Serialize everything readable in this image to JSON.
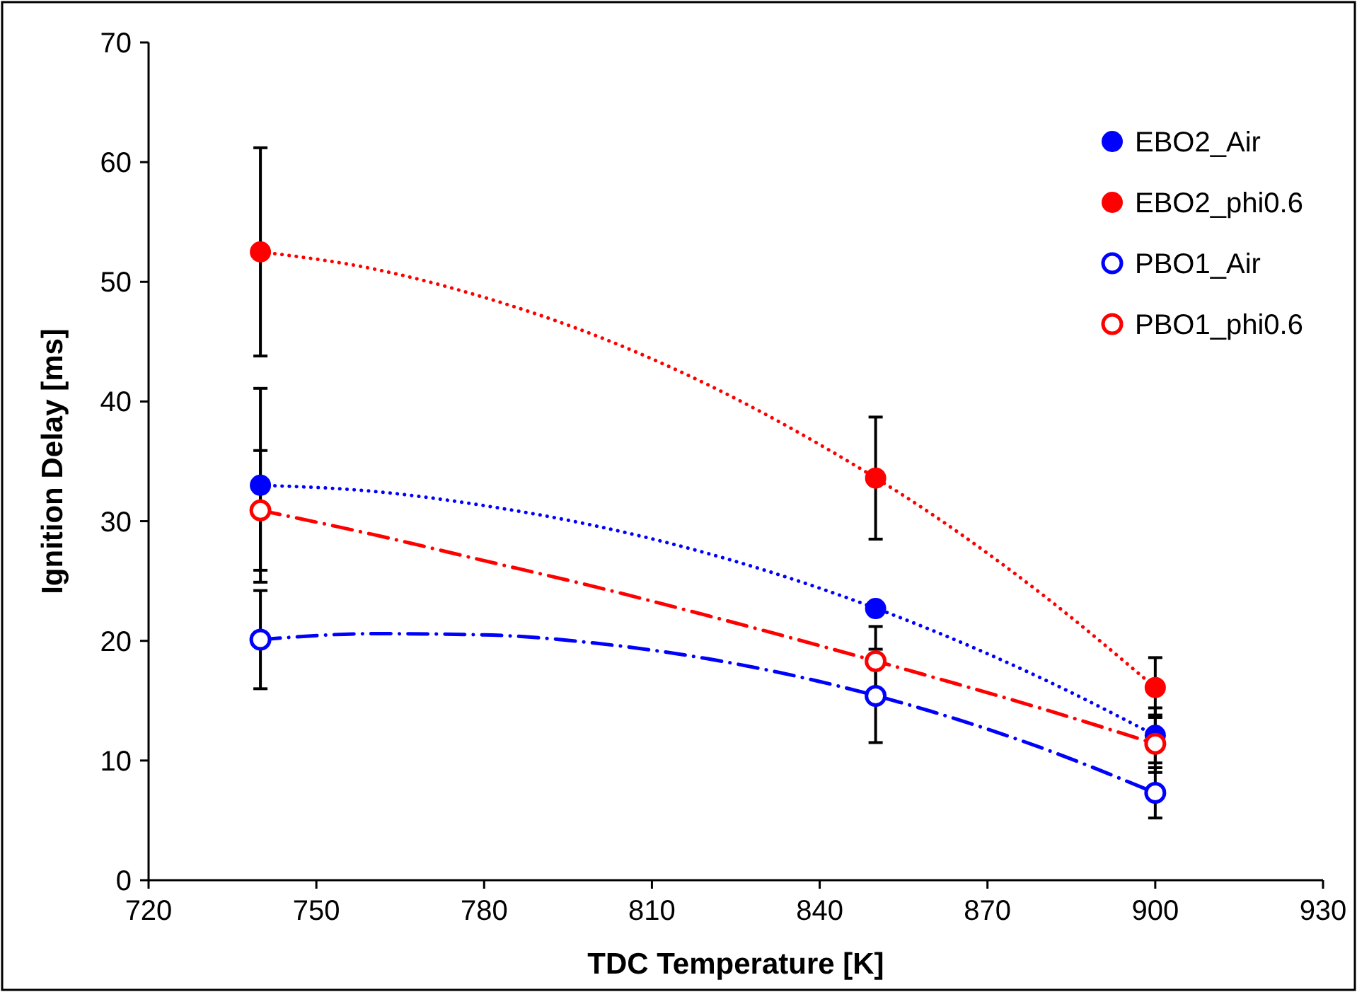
{
  "chart_data": {
    "type": "scatter",
    "xlabel": "TDC Temperature [K]",
    "ylabel": "Ignition Delay [ms]",
    "xlim": [
      720,
      930
    ],
    "xticks": [
      720,
      750,
      780,
      810,
      840,
      870,
      900,
      930
    ],
    "ylim": [
      0,
      70
    ],
    "yticks": [
      0,
      10,
      20,
      30,
      40,
      50,
      60,
      70
    ],
    "grid": false,
    "legend": "top right",
    "marker": "circle",
    "series": [
      {
        "name": "EBO2_Air",
        "color": "#0000ff",
        "x": [
          740,
          850,
          900
        ],
        "values": [
          33.0,
          22.7,
          12.1
        ],
        "errors": [
          8.1,
          null,
          2.3
        ]
      },
      {
        "name": "EBO2_phi0.6",
        "color": "#ff0000",
        "x": [
          740,
          850,
          900
        ],
        "values": [
          52.5,
          33.6,
          16.1
        ],
        "errors": [
          8.7,
          5.1,
          2.5
        ]
      },
      {
        "name": "PBO1_Air",
        "color": "#0000ff",
        "marker": "circle-open",
        "x": [
          740,
          850,
          900
        ],
        "values": [
          20.1,
          15.4,
          7.3
        ],
        "errors": [
          4.1,
          3.9,
          2.1
        ]
      },
      {
        "name": "PBO1_phi0.6",
        "color": "#ff0000",
        "marker": "circle-open",
        "x": [
          740,
          850,
          900
        ],
        "values": [
          30.9,
          18.3,
          11.4
        ],
        "errors": [
          5.0,
          2.9,
          2.4
        ]
      },
      {
        "type": "line",
        "color": "#0000ff",
        "line_style": "dotted",
        "marker": "none",
        "x": [
          740,
          760,
          780,
          800,
          820,
          840,
          860,
          880,
          900
        ],
        "values": [
          33.0,
          32.5,
          31.3,
          29.6,
          27.3,
          24.4,
          20.9,
          16.8,
          12.1
        ]
      },
      {
        "type": "line",
        "color": "#ff0000",
        "line_style": "dotted",
        "marker": "none",
        "x": [
          740,
          760,
          780,
          800,
          820,
          840,
          860,
          880,
          900
        ],
        "values": [
          52.5,
          51.1,
          48.7,
          45.5,
          41.4,
          36.4,
          30.6,
          23.8,
          16.1
        ]
      },
      {
        "type": "line",
        "color": "#0000ff",
        "line_style": "dashed",
        "marker": "none",
        "x": [
          740,
          760,
          780,
          800,
          820,
          840,
          860,
          880,
          900
        ],
        "values": [
          20.1,
          20.6,
          20.5,
          19.8,
          18.5,
          16.6,
          14.1,
          11.0,
          7.3
        ]
      },
      {
        "type": "line",
        "color": "#ff0000",
        "line_style": "dashed",
        "marker": "none",
        "x": [
          740,
          760,
          780,
          800,
          820,
          840,
          860,
          880,
          900
        ],
        "values": [
          30.9,
          28.9,
          26.7,
          24.5,
          22.1,
          19.6,
          17.0,
          14.3,
          11.4
        ]
      }
    ]
  }
}
